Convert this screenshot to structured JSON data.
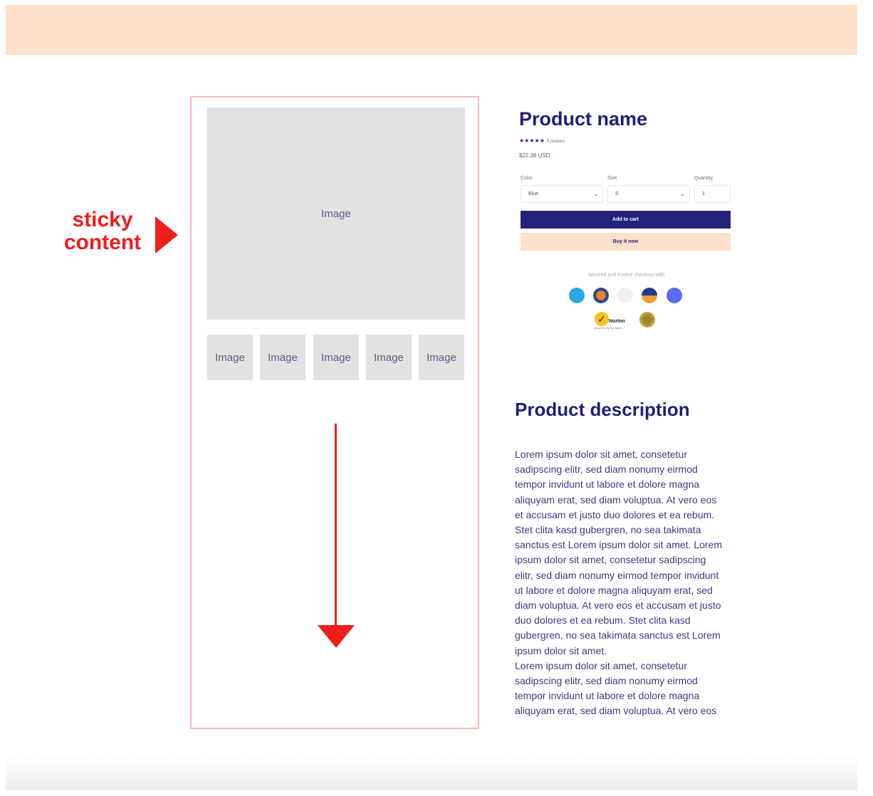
{
  "annotation": {
    "line1": "sticky",
    "line2": "content"
  },
  "gallery": {
    "main_label": "Image",
    "thumbs": [
      "Image",
      "Image",
      "Image",
      "Image",
      "Image"
    ]
  },
  "product": {
    "name": "Product name",
    "stars": "★★★★★",
    "reviews": "5 reviews",
    "price": "$22.38 USD",
    "color_label": "Color",
    "color_value": "Blue",
    "size_label": "Size",
    "size_value": "S",
    "quantity_label": "Quantity",
    "quantity_value": "1",
    "add_to_cart": "Add to cart",
    "buy_now": "Buy it now",
    "secure_text": "Secured and trusted checkout with:",
    "payment_icons": [
      "amex-icon",
      "mastercard-icon",
      "paypal-icon",
      "visa-icon",
      "gpay-icon"
    ],
    "trust_badges": [
      "Norton",
      "seal"
    ],
    "norton_label": "Norton",
    "norton_sub": "powered by Symantec"
  },
  "description": {
    "title": "Product description",
    "lines": [
      "Lorem ipsum dolor sit amet, consetetur",
      "sadipscing elitr, sed diam nonumy eirmod",
      "tempor invidunt ut labore et dolore magna",
      "aliquyam erat, sed diam voluptua. At vero eos",
      "et accusam et justo duo dolores et ea rebum.",
      "Stet clita kasd gubergren, no sea takimata",
      "sanctus est Lorem ipsum dolor sit amet. Lorem",
      "ipsum dolor sit amet, consetetur sadipscing",
      "elitr, sed diam nonumy eirmod tempor invidunt",
      "ut labore et dolore magna aliquyam erat, sed",
      "diam voluptua. At vero eos et accusam et justo",
      "duo dolores et ea rebum. Stet clita kasd",
      "gubergren, no sea takimata sanctus est Lorem",
      "ipsum dolor sit amet.",
      "Lorem ipsum dolor sit amet, consetetur",
      "sadipscing elitr, sed diam nonumy eirmod",
      "tempor invidunt ut labore et dolore magna",
      "aliquyam erat, sed diam voluptua. At vero eos"
    ]
  },
  "colors": {
    "accent": "#1f1f7a",
    "peach": "#fde0cb",
    "annotation": "#f01d1d"
  }
}
